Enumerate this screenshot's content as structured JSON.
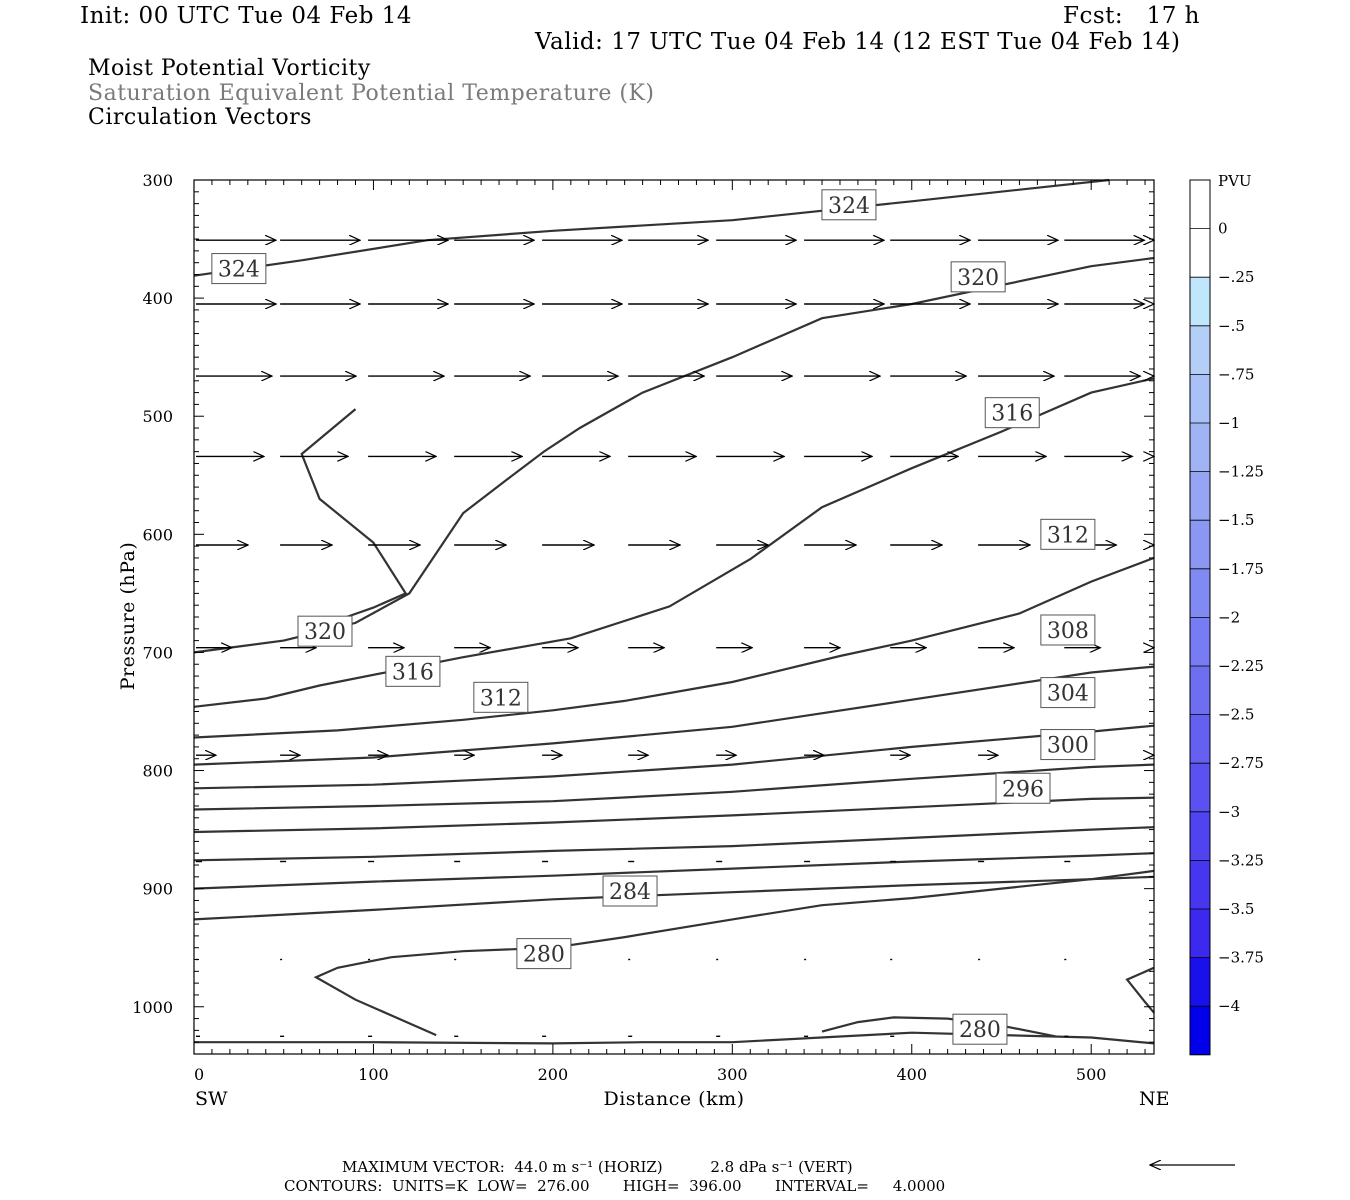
{
  "header": {
    "init": "Init: 00 UTC Tue 04 Feb 14",
    "fcst": "Fcst:   17 h",
    "valid": "Valid: 17 UTC Tue 04 Feb 14 (12 EST Tue 04 Feb 14)"
  },
  "fields": [
    {
      "label": "Moist Potential Vorticity",
      "color": "#000000"
    },
    {
      "label": "Saturation Equivalent Potential Temperature (K)",
      "color": "#7a7a7a"
    },
    {
      "label": "Circulation Vectors",
      "color": "#000000"
    }
  ],
  "footer": {
    "max_vector": "MAXIMUM VECTOR:  44.0 m s⁻¹ (HORIZ)          2.8 dPa s⁻¹ (VERT)",
    "contours": "CONTOURS:  UNITS=K  LOW=  276.00       HIGH=  396.00       INTERVAL=     4.0000"
  },
  "chart_data": {
    "type": "line",
    "xlabel": "Distance (km)",
    "ylabel": "Pressure (hPa)",
    "xlim": [
      0,
      535
    ],
    "ylim": [
      1040,
      300
    ],
    "x_ticks": [
      0,
      100,
      200,
      300,
      400,
      500
    ],
    "y_ticks": [
      300,
      400,
      500,
      600,
      700,
      800,
      900,
      1000
    ],
    "endpoint_labels": {
      "left": "SW",
      "right": "NE"
    },
    "colorbar": {
      "unit": "PVU",
      "labels": [
        "0",
        "-.25",
        "-.5",
        "-.75",
        "-1",
        "-1.25",
        "-1.5",
        "-1.75",
        "-2",
        "-2.25",
        "-2.5",
        "-2.75",
        "-3",
        "-3.25",
        "-3.5",
        "-3.75",
        "-4"
      ],
      "colors": [
        "#ffffff",
        "#ffffff",
        "#bfe6fb",
        "#b3cff8",
        "#a9c1f6",
        "#9fb3f5",
        "#95a5f4",
        "#8b97f3",
        "#8189f2",
        "#787cf2",
        "#6e6ef1",
        "#6460f1",
        "#5a52f0",
        "#5044f0",
        "#4636ef",
        "#3c28ee",
        "#1a10ec",
        "#0000eb"
      ]
    },
    "contour_labels": [
      {
        "text": "324",
        "x": 365,
        "y": 321
      },
      {
        "text": "324",
        "x": 25,
        "y": 375
      },
      {
        "text": "320",
        "x": 437,
        "y": 382
      },
      {
        "text": "316",
        "x": 456,
        "y": 497
      },
      {
        "text": "312",
        "x": 487,
        "y": 600
      },
      {
        "text": "320",
        "x": 73,
        "y": 682
      },
      {
        "text": "316",
        "x": 122,
        "y": 716
      },
      {
        "text": "312",
        "x": 171,
        "y": 738
      },
      {
        "text": "308",
        "x": 487,
        "y": 681
      },
      {
        "text": "304",
        "x": 487,
        "y": 734
      },
      {
        "text": "300",
        "x": 487,
        "y": 778
      },
      {
        "text": "296",
        "x": 462,
        "y": 815
      },
      {
        "text": "284",
        "x": 243,
        "y": 902
      },
      {
        "text": "280",
        "x": 195,
        "y": 955
      },
      {
        "text": "280",
        "x": 438,
        "y": 1019
      }
    ],
    "contours": [
      {
        "x": [
          0,
          60,
          130,
          200,
          300,
          400,
          510
        ],
        "y": [
          381,
          368,
          351,
          343,
          334,
          318,
          300
        ]
      },
      {
        "x": [
          0,
          50,
          90,
          120,
          150,
          175,
          195,
          215,
          250,
          300,
          350,
          400,
          450,
          500,
          535
        ],
        "y": [
          700,
          690,
          675,
          650,
          582,
          553,
          530,
          510,
          480,
          450,
          417,
          405,
          389,
          373,
          366
        ]
      },
      {
        "x": [
          0,
          40,
          70,
          110,
          150,
          210,
          265,
          310,
          350,
          400,
          450,
          500,
          535
        ],
        "y": [
          746,
          739,
          728,
          716,
          704,
          688,
          661,
          621,
          577,
          544,
          513,
          480,
          468
        ]
      },
      {
        "x": [
          0,
          80,
          150,
          200,
          240,
          300,
          360,
          400,
          460,
          500,
          535
        ],
        "y": [
          772,
          766,
          757,
          749,
          741,
          725,
          703,
          690,
          667,
          640,
          620
        ]
      },
      {
        "x": [
          0,
          100,
          200,
          300,
          400,
          500,
          535
        ],
        "y": [
          795,
          789,
          777,
          763,
          740,
          717,
          712
        ]
      },
      {
        "x": [
          0,
          100,
          200,
          300,
          400,
          500,
          535
        ],
        "y": [
          815,
          812,
          805,
          795,
          780,
          767,
          762
        ]
      },
      {
        "x": [
          0,
          100,
          200,
          300,
          400,
          500,
          535
        ],
        "y": [
          833,
          830,
          826,
          818,
          807,
          797,
          795
        ]
      },
      {
        "x": [
          0,
          100,
          200,
          300,
          400,
          500,
          535
        ],
        "y": [
          852,
          849,
          844,
          838,
          831,
          824,
          823
        ]
      },
      {
        "x": [
          0,
          100,
          200,
          300,
          400,
          500,
          535
        ],
        "y": [
          876,
          873,
          868,
          864,
          857,
          850,
          848
        ]
      },
      {
        "x": [
          0,
          100,
          200,
          300,
          400,
          500,
          535
        ],
        "y": [
          900,
          894,
          889,
          883,
          877,
          872,
          870
        ]
      },
      {
        "x": [
          0,
          100,
          200,
          300,
          400,
          500,
          535
        ],
        "y": [
          926,
          918,
          909,
          903,
          897,
          892,
          890
        ]
      },
      {
        "x": [
          0,
          100,
          200,
          250,
          300,
          400,
          500,
          535
        ],
        "y": [
          1030,
          1030,
          1031,
          1030,
          1030,
          1022,
          1026,
          1031
        ]
      },
      {
        "x": [
          135,
          90,
          68,
          80,
          110,
          150,
          200,
          240,
          300,
          350,
          400,
          450,
          500,
          535
        ],
        "y": [
          1024,
          994,
          975,
          967,
          958,
          953,
          950,
          941,
          926,
          914,
          908,
          900,
          892,
          885
        ]
      },
      {
        "x": [
          350,
          370,
          390,
          420,
          450,
          480
        ],
        "y": [
          1021,
          1013,
          1009,
          1010,
          1016,
          1025
        ]
      },
      {
        "x": [
          535,
          520,
          530,
          535
        ],
        "y": [
          967,
          977,
          996,
          1005
        ]
      },
      {
        "x": [
          90,
          60,
          70,
          100,
          118,
          100,
          85
        ],
        "y": [
          494,
          532,
          570,
          607,
          650,
          662,
          670
        ]
      }
    ],
    "vector_rows": [
      {
        "p": 351,
        "dx": 40,
        "dy": 0
      },
      {
        "p": 405,
        "dx": 40,
        "dy": 0
      },
      {
        "p": 466,
        "dx": 38,
        "dy": 0
      },
      {
        "p": 534,
        "dx": 34,
        "dy": 0
      },
      {
        "p": 609,
        "dx": 26,
        "dy": 0
      },
      {
        "p": 696,
        "dx": 18,
        "dy": 0
      },
      {
        "p": 787,
        "dx": 10,
        "dy": 0
      },
      {
        "p": 877,
        "dx": 3,
        "dy": 0
      },
      {
        "p": 960,
        "dx": 1,
        "dy": 0
      },
      {
        "p": 1025,
        "dx": 2,
        "dy": 0
      }
    ],
    "vector_x": [
      0,
      48,
      97,
      145,
      194,
      242,
      291,
      340,
      388,
      437,
      485,
      535
    ],
    "reference_vector": {
      "speed": "44.0 m s⁻¹"
    }
  }
}
